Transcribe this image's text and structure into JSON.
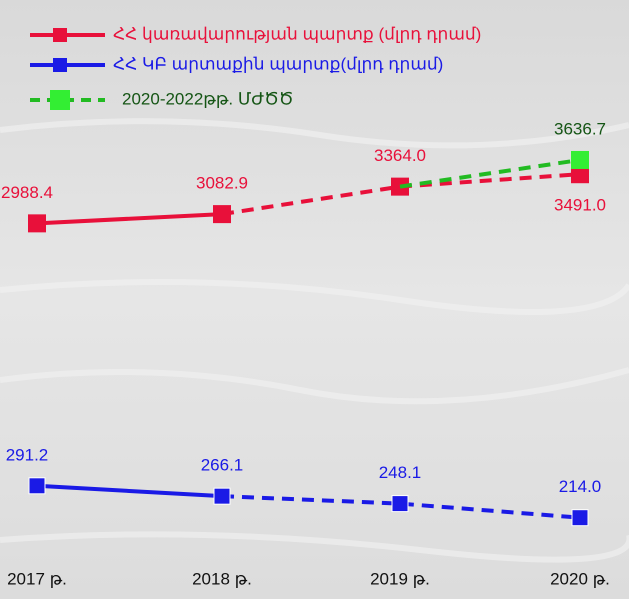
{
  "chart_data": {
    "type": "line",
    "categories": [
      "2017 թ.",
      "2018 թ.",
      "2019 թ.",
      "2020 թ."
    ],
    "series": [
      {
        "name": "ՀՀ կառավարության պարտք (մլրդ դրամ)",
        "color": "#e8103a",
        "values": [
          2988.4,
          3082.9,
          3364.0,
          3491.0
        ],
        "value_labels": [
          "2988.4",
          "3082.9",
          "3364.0",
          "3491.0"
        ],
        "dashed_after": 1
      },
      {
        "name": "ՀՀ ԿԲ արտաքին պարտք(մլրդ դրամ)",
        "color": "#1a1ae6",
        "values": [
          291.2,
          266.1,
          248.1,
          214.0
        ],
        "value_labels": [
          "291.2",
          "266.1",
          "248.1",
          "214.0"
        ],
        "axis": "y2",
        "dashed_after": 1
      },
      {
        "name": "2020-2022թթ. ՄԺԾԾ",
        "color": "#22bb22",
        "marker_color": "#33ee33",
        "values": [
          null,
          null,
          3364.0,
          3636.7
        ],
        "value_labels": [
          null,
          null,
          null,
          "3636.7"
        ],
        "dashed_after": 0
      }
    ],
    "ylim": [
      -250,
      4250
    ],
    "y2lim": [
      160,
      1225
    ]
  }
}
